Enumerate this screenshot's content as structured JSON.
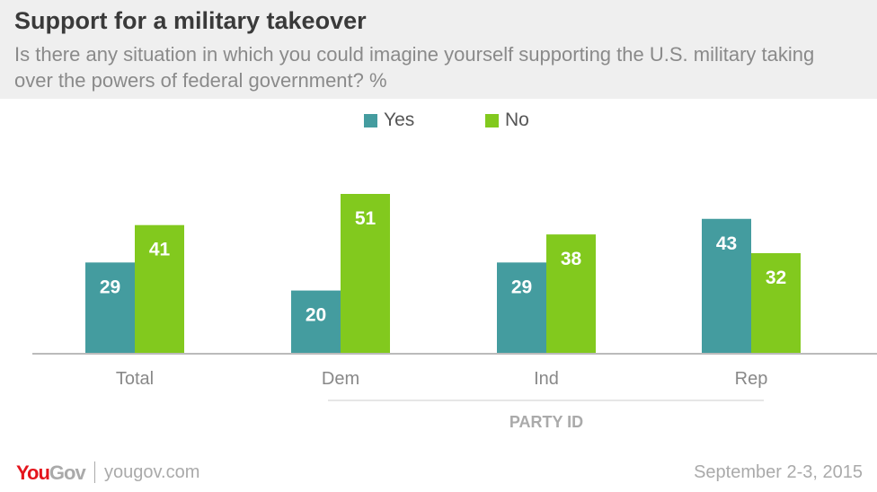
{
  "chart_data": {
    "type": "bar",
    "title": "Support for a military takeover",
    "subtitle": "Is there any situation in which you could imagine yourself supporting the U.S. military taking over the powers of federal government? %",
    "categories": [
      "Total",
      "Dem",
      "Ind",
      "Rep"
    ],
    "group_label": "PARTY ID",
    "series": [
      {
        "name": "Yes",
        "color": "#449c9f",
        "values": [
          29,
          20,
          29,
          43
        ]
      },
      {
        "name": "No",
        "color": "#82c91e",
        "values": [
          41,
          51,
          38,
          32
        ]
      }
    ],
    "ylim": [
      0,
      55
    ],
    "grid": false,
    "legend": "top-center"
  },
  "footer": {
    "brand": "YouGov",
    "site": "yougov.com",
    "date": "September 2-3, 2015"
  }
}
